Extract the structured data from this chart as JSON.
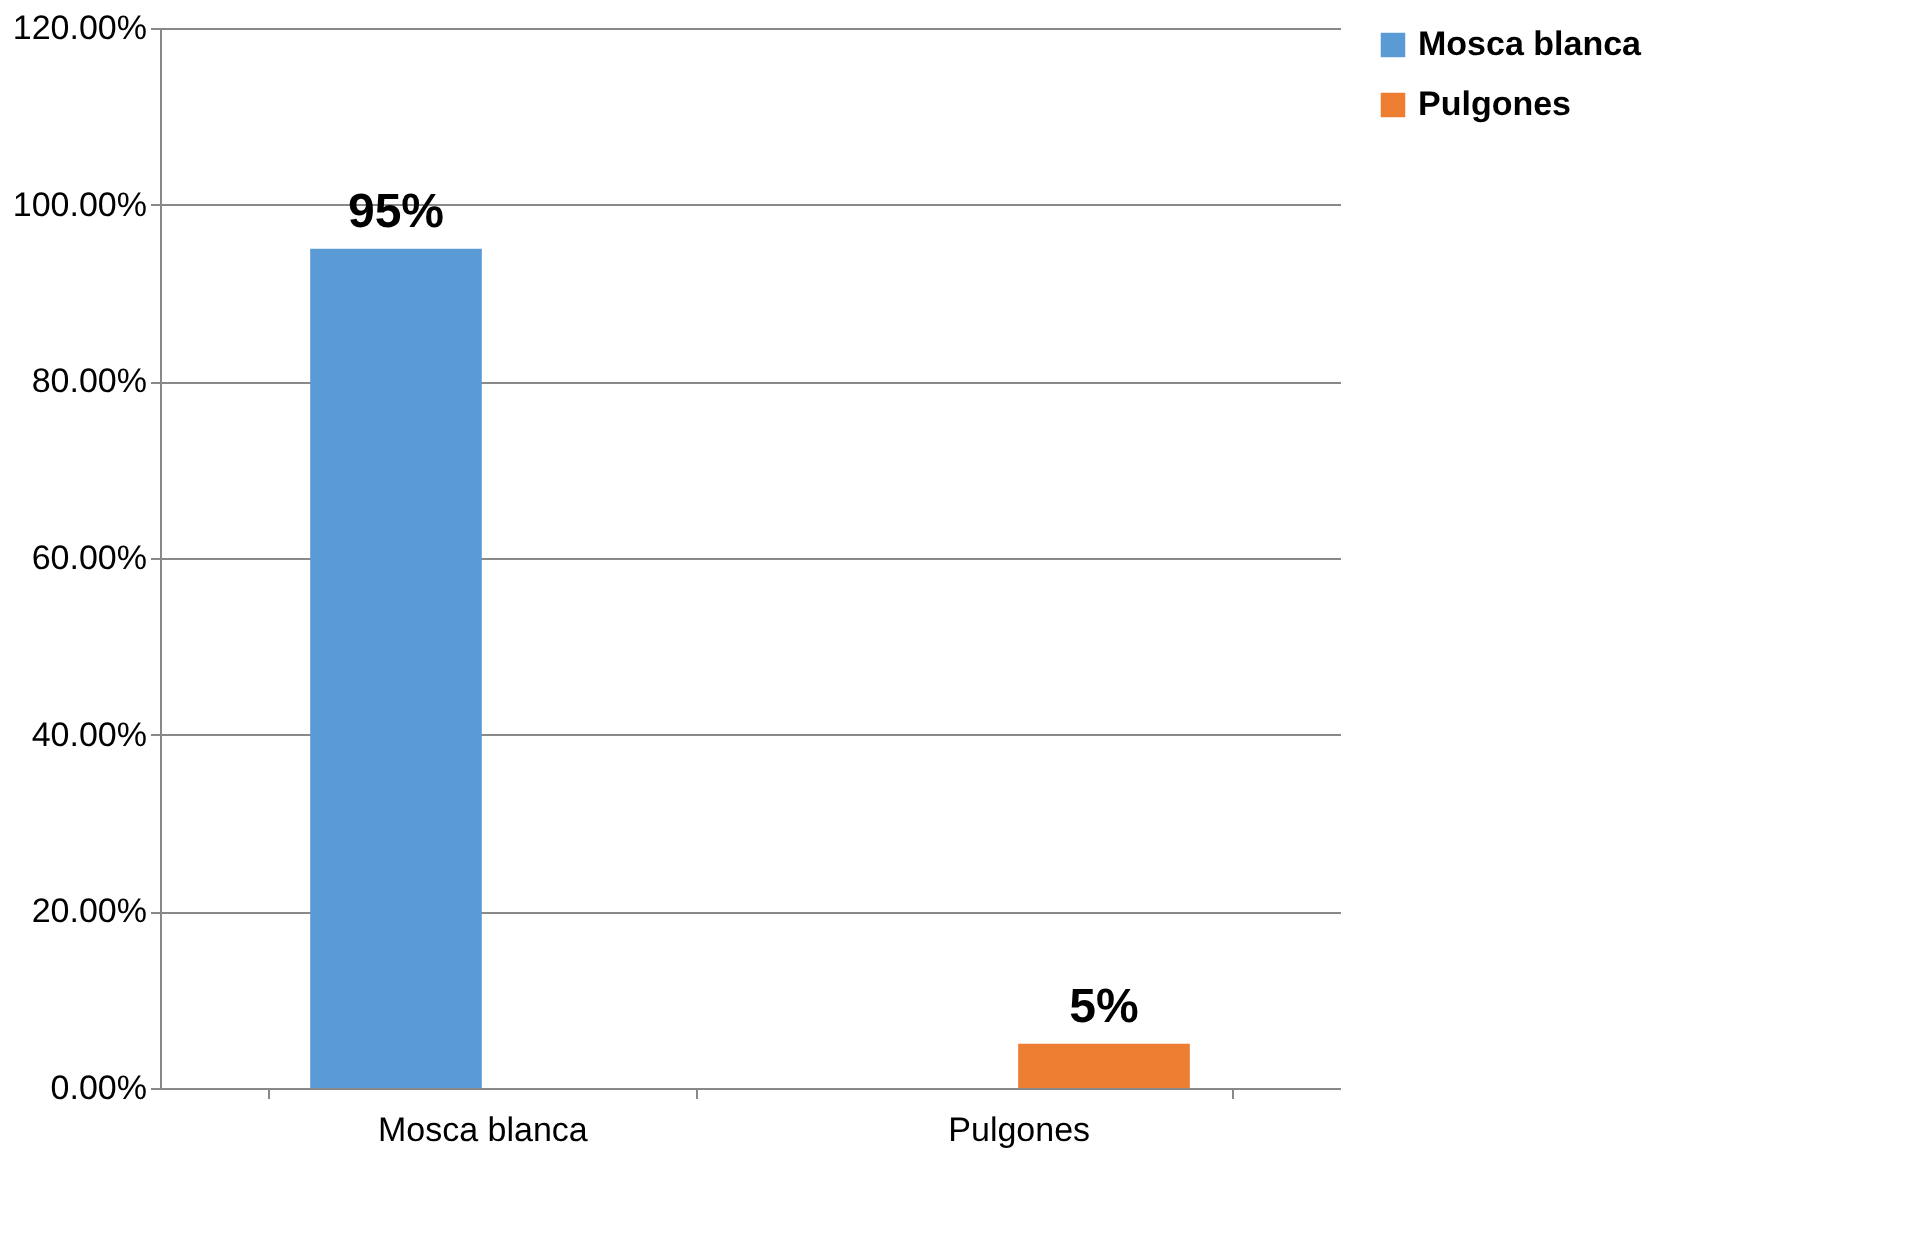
{
  "chart_data": {
    "type": "bar",
    "categories": [
      "Mosca blanca",
      "Pulgones"
    ],
    "series": [
      {
        "name": "Mosca blanca",
        "color": "#5b9bd5",
        "values": [
          95,
          null
        ],
        "value_labels": [
          "95%",
          null
        ]
      },
      {
        "name": "Pulgones",
        "color": "#ed7d31",
        "values": [
          null,
          5
        ],
        "value_labels": [
          null,
          "5%"
        ]
      }
    ],
    "ylim": [
      0,
      120
    ],
    "yticks": [
      {
        "value": 0,
        "label": "0.00%"
      },
      {
        "value": 20,
        "label": "20.00%"
      },
      {
        "value": 40,
        "label": "40.00%"
      },
      {
        "value": 60,
        "label": "60.00%"
      },
      {
        "value": 80,
        "label": "80.00%"
      },
      {
        "value": 100,
        "label": "100.00%"
      },
      {
        "value": 120,
        "label": "120.00%"
      }
    ],
    "grid": "y",
    "legend": "right"
  }
}
